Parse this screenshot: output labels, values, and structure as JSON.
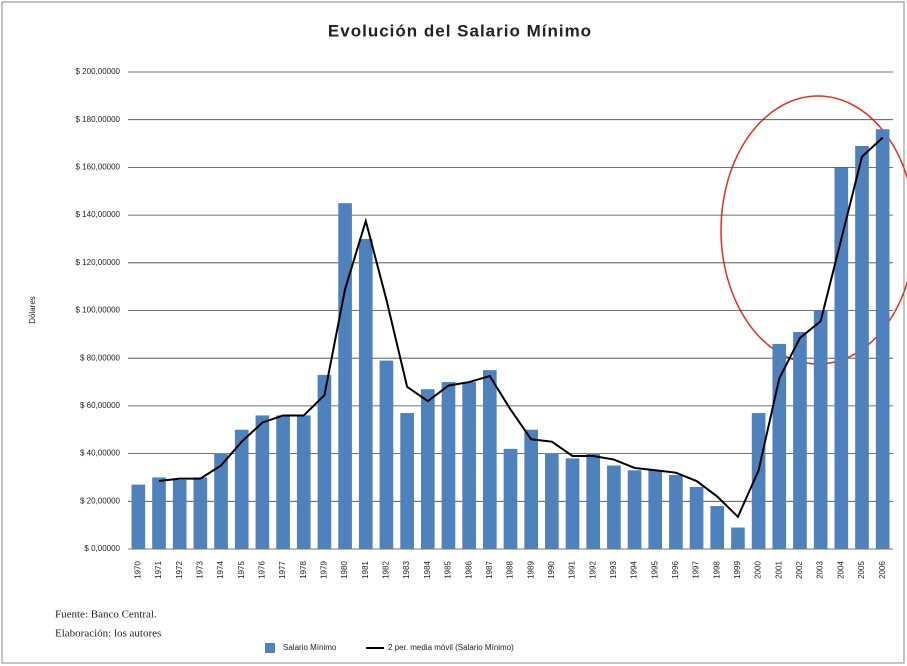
{
  "chart_data": {
    "type": "bar",
    "title": "Evolución del Salario Mínimo",
    "y_label": "Dólares",
    "categories": [
      "1970",
      "1971",
      "1972",
      "1973",
      "1974",
      "1975",
      "1976",
      "1977",
      "1978",
      "1979",
      "1980",
      "1981",
      "1982",
      "1983",
      "1984",
      "1985",
      "1986",
      "1987",
      "1988",
      "1989",
      "1990",
      "1991",
      "1992",
      "1993",
      "1994",
      "1995",
      "1996",
      "1997",
      "1998",
      "1999",
      "2000",
      "2001",
      "2002",
      "2003",
      "2004",
      "2005",
      "2006"
    ],
    "series": [
      {
        "name": "Salario Mínimo",
        "type": "bar",
        "color": "#4f81bd",
        "values": [
          27,
          30,
          29,
          30,
          40,
          50,
          56,
          56,
          56,
          73,
          145,
          130,
          79,
          57,
          67,
          70,
          70,
          75,
          42,
          50,
          40,
          38,
          40,
          35,
          33,
          33,
          31,
          26,
          18,
          9,
          57,
          86,
          91,
          100,
          160,
          169,
          176
        ]
      },
      {
        "name": "2 per. media móvil (Salario Mínimo)",
        "type": "line",
        "color": "#000000",
        "values": [
          null,
          28.5,
          29.5,
          29.5,
          35,
          45,
          53,
          56,
          56,
          64.5,
          109,
          137.5,
          104.5,
          68,
          62,
          68.5,
          70,
          72.5,
          58.5,
          46,
          45,
          39,
          39,
          37.5,
          34,
          33,
          32,
          28.5,
          22,
          13.5,
          33,
          71.5,
          88.5,
          95.5,
          130,
          164.5,
          172.5
        ]
      }
    ],
    "ylim": [
      0,
      200
    ],
    "yticks": [
      {
        "value": 0,
        "label": "$ 0,00000"
      },
      {
        "value": 20,
        "label": "$ 20,00000"
      },
      {
        "value": 40,
        "label": "$ 40,00000"
      },
      {
        "value": 60,
        "label": "$ 60,00000"
      },
      {
        "value": 80,
        "label": "$ 80,00000"
      },
      {
        "value": 100,
        "label": "$ 100,00000"
      },
      {
        "value": 120,
        "label": "$ 120,00000"
      },
      {
        "value": 140,
        "label": "$ 140,00000"
      },
      {
        "value": 160,
        "label": "$ 160,00000"
      },
      {
        "value": 180,
        "label": "$ 180,00000"
      },
      {
        "value": 200,
        "label": "$ 200,00000"
      }
    ],
    "grid": true,
    "legend": "bottom",
    "notes": [
      "Fuente: Banco Central.",
      "Elaboración: los autores"
    ]
  }
}
